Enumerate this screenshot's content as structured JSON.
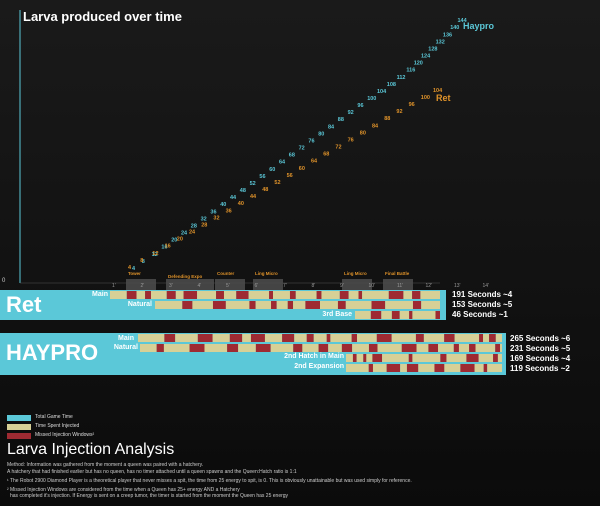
{
  "chart_data": {
    "type": "line",
    "title": "Larva produced over time",
    "ytick_zero": "0",
    "colors": {
      "haypro": "#5bc8d8",
      "ret": "#e0932a",
      "injected": "#d7d096",
      "missed": "#9e2a32",
      "total": "#5bc8d8"
    },
    "series": [
      {
        "name": "Haypro",
        "values": [
          4,
          8,
          12,
          16,
          20,
          24,
          28,
          32,
          36,
          40,
          44,
          48,
          52,
          56,
          60,
          64,
          68,
          72,
          76,
          80,
          84,
          88,
          92,
          96,
          100,
          104,
          108,
          112,
          116,
          120,
          124,
          128,
          132,
          136,
          140,
          144
        ]
      },
      {
        "name": "Ret",
        "values": [
          4,
          8,
          12,
          16,
          20,
          24,
          28,
          32,
          36,
          40,
          44,
          48,
          52,
          56,
          60,
          64,
          68,
          72,
          76,
          80,
          84,
          88,
          92,
          96,
          100,
          104
        ]
      }
    ],
    "events": [
      "Tower",
      "Defending Expo",
      "Counter",
      "Ling Micro",
      "Ling Micro",
      "Final Battle"
    ],
    "minute_marks": [
      "1'",
      "2'",
      "3'",
      "4'",
      "5'",
      "6'",
      "7'",
      "8'",
      "9'",
      "10'",
      "11'",
      "12'",
      "13'",
      "14'"
    ]
  },
  "ret": {
    "name": "Ret",
    "lanes": [
      {
        "label": "Main",
        "summary": "191 Seconds  ~4"
      },
      {
        "label": "Natural",
        "summary": "153 Seconds  ~5"
      },
      {
        "label": "3rd Base",
        "summary": "46 Seconds  ~1"
      }
    ]
  },
  "haypro": {
    "name": "HAYPRO",
    "lanes": [
      {
        "label": "Main",
        "summary": "265 Seconds  ~6"
      },
      {
        "label": "Natural",
        "summary": "231 Seconds  ~5"
      },
      {
        "label": "2nd Hatch in Main",
        "summary": "169 Seconds  ~4"
      },
      {
        "label": "2nd Expansion",
        "summary": "119 Seconds  ~2"
      }
    ]
  },
  "legend": {
    "total": "Total Game Time",
    "injected": "Time Spent Injected",
    "missed": "Missed Injection Windows²"
  },
  "analysis": {
    "heading": "Larva Injection Analysis",
    "method": "Method: Information was gathered from the moment a queen was paired with a hatchery.",
    "method2": "A hatchery that had finished earlier but has no queen, has no timer attached until a queen spawns and the Queen:Hatch ratio is 1:1",
    "note1": "¹ The Robot 2900 Diamond Player is a theoretical player that never misses a spit, the time from 25 energy to spit, is 0.  This is obviously unattainable but was used simply for reference.",
    "note2": "² Missed Injection Windows are considered from the time when a Queen has 25+ energy AND a Hatchery",
    "note3": "has completed it's injection. If Energy is sent on a creep tumor, the timer is started from the moment the Queen has 25 energy"
  }
}
